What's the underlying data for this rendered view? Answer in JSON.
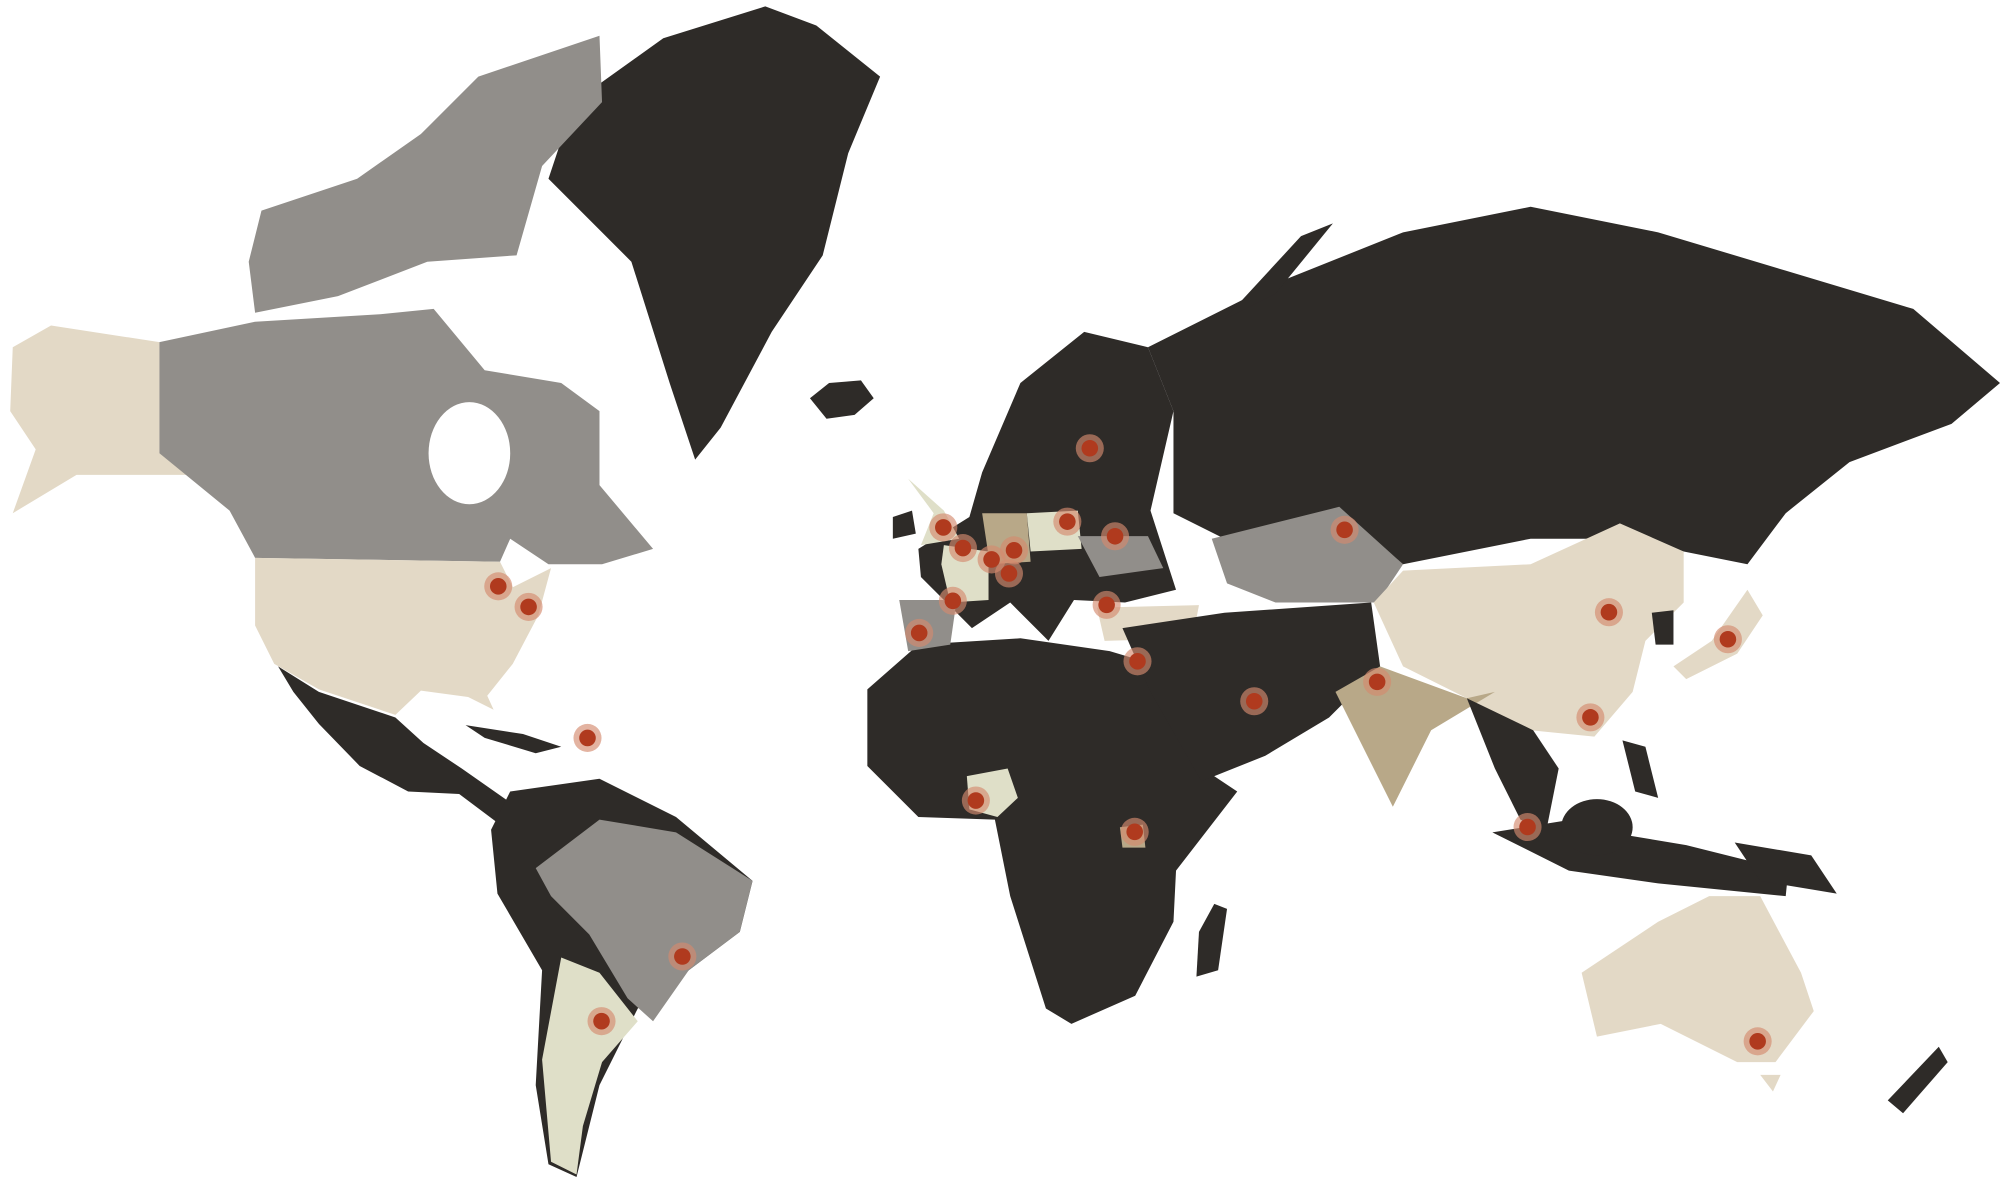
{
  "map": {
    "projection": "mercator",
    "palette": {
      "dark": "#2e2b28",
      "gray": "#918e8a",
      "beige": "#e3d9c6",
      "tan": "#b8a888",
      "pale": "#dfdfc8",
      "marker": "#b03a1e",
      "marker_halo": "#d48a6e"
    },
    "markers": [
      {
        "lat": 43.7,
        "lon": -79.4
      },
      {
        "lat": 40.7,
        "lon": -74.0
      },
      {
        "lat": 18.5,
        "lon": -63.5
      },
      {
        "lat": -23.5,
        "lon": -46.6
      },
      {
        "lat": -34.6,
        "lon": -61.0
      },
      {
        "lat": 36.7,
        "lon": -4.4
      },
      {
        "lat": 51.5,
        "lon": -0.1
      },
      {
        "lat": 48.9,
        "lon": 3.4
      },
      {
        "lat": 41.6,
        "lon": 1.6
      },
      {
        "lat": 47.4,
        "lon": 8.5
      },
      {
        "lat": 48.6,
        "lon": 12.5
      },
      {
        "lat": 45.5,
        "lon": 11.6
      },
      {
        "lat": 52.2,
        "lon": 22.0
      },
      {
        "lat": 60.2,
        "lon": 26.0
      },
      {
        "lat": 50.4,
        "lon": 30.5
      },
      {
        "lat": 41.0,
        "lon": 29.0
      },
      {
        "lat": 32.1,
        "lon": 34.5
      },
      {
        "lat": 25.2,
        "lon": 55.3
      },
      {
        "lat": 51.2,
        "lon": 71.4
      },
      {
        "lat": 28.6,
        "lon": 77.2
      },
      {
        "lat": 6.5,
        "lon": 5.7
      },
      {
        "lat": 0.35,
        "lon": 34.0
      },
      {
        "lat": 1.3,
        "lon": 104.0
      },
      {
        "lat": 22.3,
        "lon": 115.2
      },
      {
        "lat": 39.9,
        "lon": 118.5
      },
      {
        "lat": 35.7,
        "lon": 139.7
      },
      {
        "lat": -37.8,
        "lon": 145.0
      }
    ]
  }
}
